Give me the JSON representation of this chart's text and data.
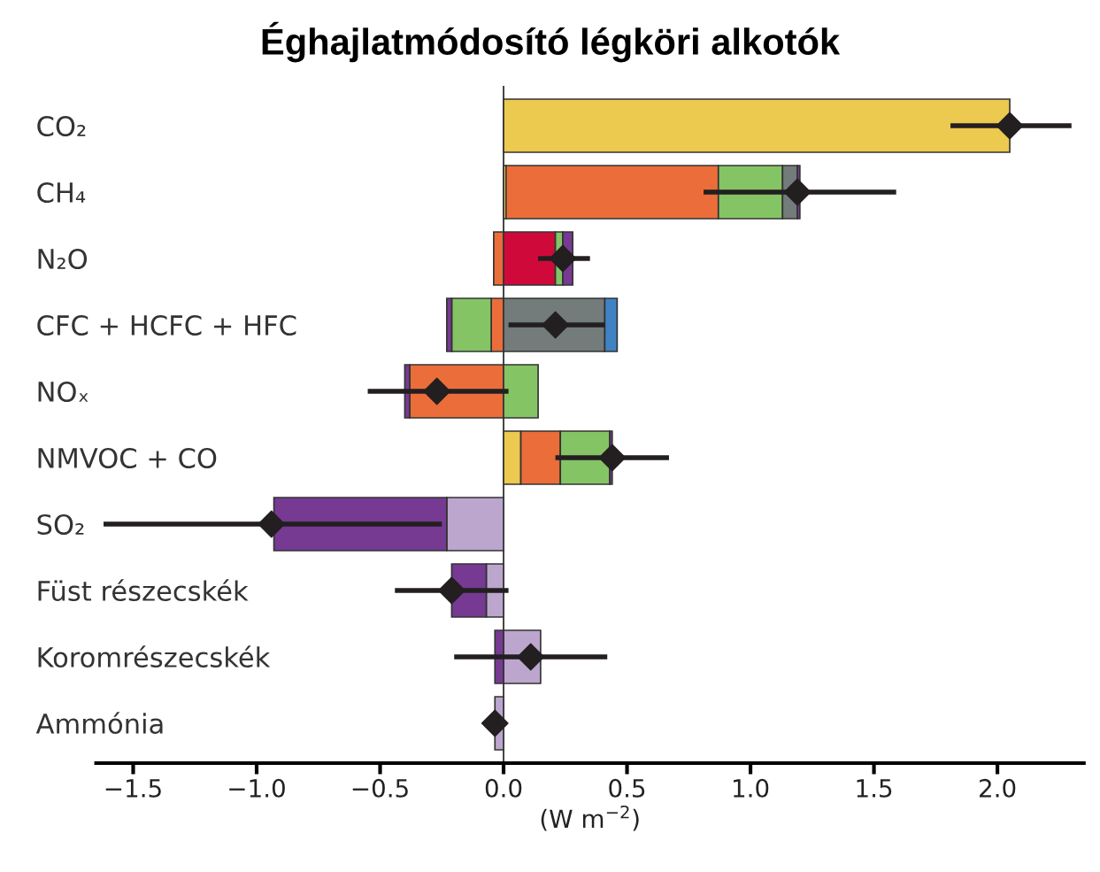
{
  "chart_data": {
    "type": "bar",
    "title": "Éghajlatmódosító légköri alkotók",
    "xlabel": "(W m$^{−2}$)",
    "orientation": "horizontal",
    "stacked": true,
    "categories": [
      "CO₂",
      "CH₄",
      "N₂O",
      "CFC + HCFC + HFC",
      "NOₓ",
      "NMVOC + CO",
      "SO₂",
      "Füst részecskék",
      "Koromrészecskék",
      "Ammónia"
    ],
    "series": [
      {
        "color": "#ecc94f",
        "values": [
          2.05,
          0.01,
          null,
          null,
          null,
          0.07,
          null,
          null,
          null,
          null
        ]
      },
      {
        "color": "#eb6d3a",
        "values": [
          null,
          0.86,
          -0.04,
          -0.05,
          -0.38,
          0.16,
          null,
          null,
          null,
          null
        ]
      },
      {
        "color": "#cf0a3a",
        "values": [
          null,
          null,
          0.21,
          null,
          null,
          null,
          null,
          null,
          null,
          null
        ]
      },
      {
        "color": "#85c465",
        "values": [
          null,
          0.26,
          0.03,
          -0.16,
          0.14,
          0.2,
          null,
          null,
          null,
          null
        ]
      },
      {
        "color": "#737b7b",
        "values": [
          null,
          0.06,
          null,
          0.41,
          null,
          null,
          null,
          null,
          null,
          null
        ]
      },
      {
        "color": "#3f83c4",
        "values": [
          null,
          null,
          null,
          0.05,
          null,
          null,
          null,
          null,
          null,
          null
        ]
      },
      {
        "color": "#bca6cd",
        "values": [
          null,
          null,
          null,
          null,
          null,
          null,
          -0.23,
          -0.07,
          0.15,
          -0.035
        ]
      },
      {
        "color": "#763a92",
        "values": [
          null,
          0.01,
          0.04,
          -0.02,
          -0.02,
          0.01,
          -0.7,
          -0.14,
          -0.035,
          null
        ]
      },
      {
        "type": "scatter",
        "color": "#231f20",
        "marker": "diamond",
        "values": [
          2.05,
          1.19,
          0.24,
          0.21,
          -0.27,
          0.44,
          -0.94,
          -0.21,
          0.11,
          -0.035
        ],
        "errors": [
          [
            1.81,
            2.3
          ],
          [
            0.81,
            1.59
          ],
          [
            0.14,
            0.35
          ],
          [
            0.02,
            0.41
          ],
          [
            -0.55,
            0.02
          ],
          [
            0.21,
            0.67
          ],
          [
            -1.62,
            -0.25
          ],
          [
            -0.44,
            0.02
          ],
          [
            -0.2,
            0.42
          ],
          null
        ]
      }
    ],
    "xlim": [
      -1.65,
      2.35
    ],
    "xticks": [
      {
        "value": -1.5,
        "label": "−1.5"
      },
      {
        "value": -1.0,
        "label": "−1.0"
      },
      {
        "value": -0.5,
        "label": "−0.5"
      },
      {
        "value": 0.0,
        "label": "0.0"
      },
      {
        "value": 0.5,
        "label": "0.5"
      },
      {
        "value": 1.0,
        "label": "1.0"
      },
      {
        "value": 1.5,
        "label": "1.5"
      },
      {
        "value": 2.0,
        "label": "2.0"
      }
    ],
    "ref_lines": [
      {
        "axis": "x",
        "value": 0,
        "color": "#231f20"
      }
    ],
    "grid": false,
    "legend": false
  }
}
